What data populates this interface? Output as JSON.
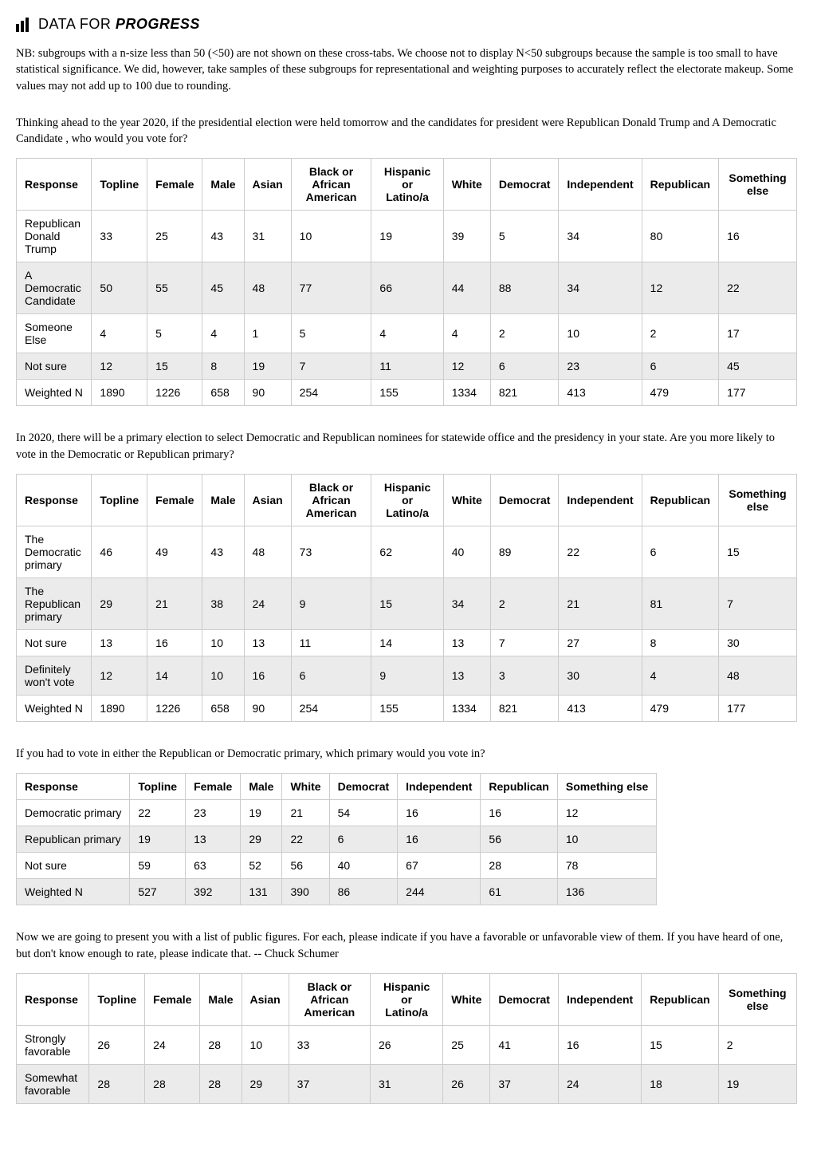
{
  "brand": {
    "text_light": "DATA FOR ",
    "text_bold": "PROGRESS"
  },
  "intro": "NB: subgroups with a n-size less than 50 (<50) are not shown on these cross-tabs. We choose not to display N<50 subgroups because the sample is too small to have statistical significance. We did, however, take samples of these subgroups for representational and weighting purposes to accurately reflect the electorate makeup. Some values may not add up to 100 due to rounding.",
  "q1": {
    "text": "Thinking ahead to the year 2020, if the presidential election were held tomorrow and the candidates for president were Republican Donald Trump and A Democratic Candidate , who would you vote for?",
    "columns": [
      "Response",
      "Topline",
      "Female",
      "Male",
      "Asian",
      "Black or African American",
      "Hispanic or Latino/a",
      "White",
      "Democrat",
      "Independent",
      "Republican",
      "Something else"
    ],
    "rows": [
      [
        "Republican Donald Trump",
        "33",
        "25",
        "43",
        "31",
        "10",
        "19",
        "39",
        "5",
        "34",
        "80",
        "16"
      ],
      [
        "A Democratic Candidate",
        "50",
        "55",
        "45",
        "48",
        "77",
        "66",
        "44",
        "88",
        "34",
        "12",
        "22"
      ],
      [
        "Someone Else",
        "4",
        "5",
        "4",
        "1",
        "5",
        "4",
        "4",
        "2",
        "10",
        "2",
        "17"
      ],
      [
        "Not sure",
        "12",
        "15",
        "8",
        "19",
        "7",
        "11",
        "12",
        "6",
        "23",
        "6",
        "45"
      ],
      [
        "Weighted N",
        "1890",
        "1226",
        "658",
        "90",
        "254",
        "155",
        "1334",
        "821",
        "413",
        "479",
        "177"
      ]
    ]
  },
  "q2": {
    "text": "In 2020, there will be a primary election to select Democratic and Republican nominees for statewide office and the presidency in your state. Are you more likely to vote in the Democratic or Republican primary?",
    "columns": [
      "Response",
      "Topline",
      "Female",
      "Male",
      "Asian",
      "Black or African American",
      "Hispanic or Latino/a",
      "White",
      "Democrat",
      "Independent",
      "Republican",
      "Something else"
    ],
    "rows": [
      [
        "The Democratic primary",
        "46",
        "49",
        "43",
        "48",
        "73",
        "62",
        "40",
        "89",
        "22",
        "6",
        "15"
      ],
      [
        "The Republican primary",
        "29",
        "21",
        "38",
        "24",
        "9",
        "15",
        "34",
        "2",
        "21",
        "81",
        "7"
      ],
      [
        "Not sure",
        "13",
        "16",
        "10",
        "13",
        "11",
        "14",
        "13",
        "7",
        "27",
        "8",
        "30"
      ],
      [
        "Definitely won't vote",
        "12",
        "14",
        "10",
        "16",
        "6",
        "9",
        "13",
        "3",
        "30",
        "4",
        "48"
      ],
      [
        "Weighted N",
        "1890",
        "1226",
        "658",
        "90",
        "254",
        "155",
        "1334",
        "821",
        "413",
        "479",
        "177"
      ]
    ]
  },
  "q3": {
    "text": "If you had to vote in either the Republican or Democratic primary, which primary would you vote in?",
    "columns": [
      "Response",
      "Topline",
      "Female",
      "Male",
      "White",
      "Democrat",
      "Independent",
      "Republican",
      "Something else"
    ],
    "rows": [
      [
        "Democratic primary",
        "22",
        "23",
        "19",
        "21",
        "54",
        "16",
        "16",
        "12"
      ],
      [
        "Republican primary",
        "19",
        "13",
        "29",
        "22",
        "6",
        "16",
        "56",
        "10"
      ],
      [
        "Not sure",
        "59",
        "63",
        "52",
        "56",
        "40",
        "67",
        "28",
        "78"
      ],
      [
        "Weighted N",
        "527",
        "392",
        "131",
        "390",
        "86",
        "244",
        "61",
        "136"
      ]
    ]
  },
  "q4": {
    "text": "Now we are going to present you with a list of public figures. For each, please indicate if you have a favorable or unfavorable view of them. If you have heard of one, but don't know enough to rate, please indicate that. -- Chuck Schumer",
    "columns": [
      "Response",
      "Topline",
      "Female",
      "Male",
      "Asian",
      "Black or African American",
      "Hispanic or Latino/a",
      "White",
      "Democrat",
      "Independent",
      "Republican",
      "Something else"
    ],
    "rows": [
      [
        "Strongly favorable",
        "26",
        "24",
        "28",
        "10",
        "33",
        "26",
        "25",
        "41",
        "16",
        "15",
        "2"
      ],
      [
        "Somewhat favorable",
        "28",
        "28",
        "28",
        "29",
        "37",
        "31",
        "26",
        "37",
        "24",
        "18",
        "19"
      ]
    ]
  }
}
